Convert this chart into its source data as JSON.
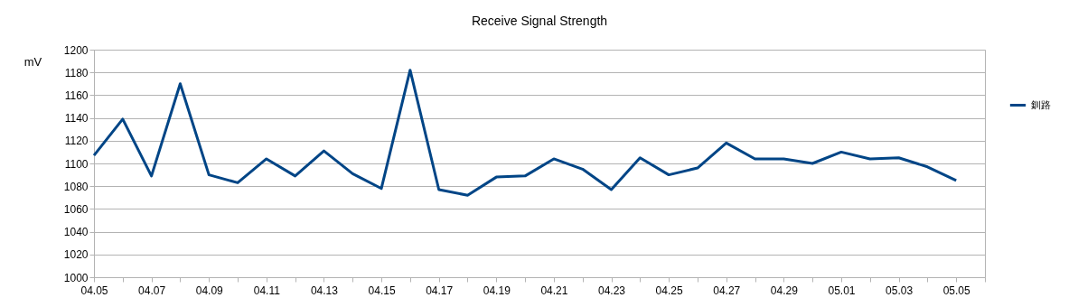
{
  "chart_data": {
    "type": "line",
    "title": "Receive Signal Strength",
    "ylabel": "mV",
    "categories": [
      "04.05",
      null,
      "04.07",
      null,
      "04.09",
      null,
      "04.11",
      null,
      "04.13",
      null,
      "04.15",
      null,
      "04.17",
      null,
      "04.19",
      null,
      "04.21",
      null,
      "04.23",
      null,
      "04.25",
      null,
      "04.27",
      null,
      "04.29",
      null,
      "05.01",
      null,
      "05.03",
      null,
      "05.05"
    ],
    "series": [
      {
        "name": "釧路",
        "color": "#004586",
        "values": [
          1107,
          1139,
          1089,
          1170,
          1090,
          1083,
          1104,
          1089,
          1111,
          1091,
          1078,
          1182,
          1077,
          1072,
          1088,
          1089,
          1104,
          1095,
          1077,
          1105,
          1090,
          1096,
          1118,
          1104,
          1104,
          1100,
          1110,
          1104,
          1105,
          1097,
          1085
        ]
      }
    ],
    "ylim": [
      1000,
      1200
    ],
    "yticks": [
      1000,
      1020,
      1040,
      1060,
      1080,
      1100,
      1120,
      1140,
      1160,
      1180,
      1200
    ],
    "grid": "y",
    "legend": "right",
    "marker": "none",
    "line_style": "solid"
  }
}
